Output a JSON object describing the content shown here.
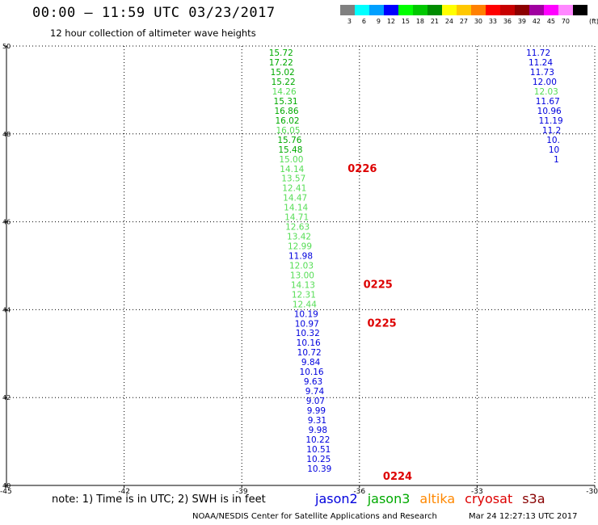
{
  "title": "00:00 – 11:59 UTC 03/23/2017",
  "subtitle": "12 hour collection of altimeter wave heights",
  "legend": {
    "unit": "(ft)",
    "bins": [
      {
        "label": "3",
        "color": "#808080"
      },
      {
        "label": "6",
        "color": "#00ffff"
      },
      {
        "label": "9",
        "color": "#00a0ff"
      },
      {
        "label": "12",
        "color": "#0000ff"
      },
      {
        "label": "15",
        "color": "#00ff00"
      },
      {
        "label": "18",
        "color": "#00c800"
      },
      {
        "label": "21",
        "color": "#008c00"
      },
      {
        "label": "24",
        "color": "#ffff00"
      },
      {
        "label": "27",
        "color": "#ffc800"
      },
      {
        "label": "30",
        "color": "#ff8000"
      },
      {
        "label": "33",
        "color": "#ff0000"
      },
      {
        "label": "36",
        "color": "#c80000"
      },
      {
        "label": "39",
        "color": "#8c0000"
      },
      {
        "label": "42",
        "color": "#a000a0"
      },
      {
        "label": "45",
        "color": "#ff00ff"
      },
      {
        "label": "70",
        "color": "#ff88ff"
      },
      {
        "label": "",
        "color": "#000000"
      }
    ]
  },
  "notes": "note: 1) Time is in UTC; 2) SWH is in feet",
  "satellites": [
    {
      "name": "jason2",
      "color": "#0000dd"
    },
    {
      "name": "jason3",
      "color": "#00aa00"
    },
    {
      "name": "altika",
      "color": "#ff8800"
    },
    {
      "name": "cryosat",
      "color": "#dd0000"
    },
    {
      "name": "s3a",
      "color": "#880000"
    }
  ],
  "credit": "NOAA/NESDIS Center for Satellite Applications and Research",
  "timestamp": "Mar 24 12:27:13 UTC 2017",
  "chart_data": {
    "type": "scatter",
    "xlim": [
      -45,
      -30
    ],
    "ylim": [
      40,
      50
    ],
    "x_ticks": [
      -45,
      -42,
      -39,
      -36,
      -33,
      -30
    ],
    "x_tick_labels": [
      "-45",
      "-42",
      "-39",
      "-36",
      "-33",
      "-30"
    ],
    "y_ticks": [
      40,
      42,
      44,
      46,
      48,
      50
    ],
    "y_tick_labels": [
      "40",
      "42",
      "44",
      "46",
      "48",
      "50"
    ],
    "grid": true,
    "series": [
      {
        "name": "jason3",
        "color": "#00aa00",
        "points": [
          {
            "x": -38.0,
            "y": 49.85,
            "v": "15.72"
          },
          {
            "x": -38.0,
            "y": 49.63,
            "v": "17.22"
          },
          {
            "x": -37.96,
            "y": 49.41,
            "v": "15.02"
          },
          {
            "x": -37.94,
            "y": 49.19,
            "v": "15.22"
          },
          {
            "x": -37.88,
            "y": 48.75,
            "v": "15.31"
          },
          {
            "x": -37.86,
            "y": 48.53,
            "v": "16.86"
          },
          {
            "x": -37.84,
            "y": 48.31,
            "v": "16.02"
          },
          {
            "x": -37.78,
            "y": 47.87,
            "v": "15.76"
          },
          {
            "x": -37.76,
            "y": 47.65,
            "v": "15.48"
          }
        ]
      },
      {
        "name": "jason3",
        "color": "#55dd55",
        "points": [
          {
            "x": -37.92,
            "y": 48.97,
            "v": "14.26"
          },
          {
            "x": -37.82,
            "y": 48.09,
            "v": "16.05"
          },
          {
            "x": -37.74,
            "y": 47.43,
            "v": "15.00"
          },
          {
            "x": -37.72,
            "y": 47.21,
            "v": "14.14"
          },
          {
            "x": -37.68,
            "y": 46.99,
            "v": "13.57"
          },
          {
            "x": -37.66,
            "y": 46.77,
            "v": "12.41"
          },
          {
            "x": -37.64,
            "y": 46.55,
            "v": "14.47"
          },
          {
            "x": -37.62,
            "y": 46.33,
            "v": "14.14"
          },
          {
            "x": -37.6,
            "y": 46.11,
            "v": "14.71"
          },
          {
            "x": -37.58,
            "y": 45.89,
            "v": "12.63"
          },
          {
            "x": -37.54,
            "y": 45.67,
            "v": "13.42"
          },
          {
            "x": -37.52,
            "y": 45.45,
            "v": "12.99"
          },
          {
            "x": -37.48,
            "y": 45.01,
            "v": "12.03"
          },
          {
            "x": -37.46,
            "y": 44.79,
            "v": "13.00"
          },
          {
            "x": -37.44,
            "y": 44.57,
            "v": "14.13"
          },
          {
            "x": -37.42,
            "y": 44.35,
            "v": "12.31"
          },
          {
            "x": -37.4,
            "y": 44.13,
            "v": "12.44"
          }
        ]
      },
      {
        "name": "jason2",
        "color": "#0000dd",
        "points": [
          {
            "x": -37.5,
            "y": 45.23,
            "v": "11.98"
          },
          {
            "x": -37.36,
            "y": 43.91,
            "v": "10.19"
          },
          {
            "x": -37.34,
            "y": 43.69,
            "v": "10.97"
          },
          {
            "x": -37.32,
            "y": 43.47,
            "v": "10.32"
          },
          {
            "x": -37.3,
            "y": 43.25,
            "v": "10.16"
          },
          {
            "x": -37.28,
            "y": 43.03,
            "v": "10.72"
          },
          {
            "x": -37.24,
            "y": 42.81,
            "v": "9.84"
          },
          {
            "x": -37.22,
            "y": 42.59,
            "v": "10.16"
          },
          {
            "x": -37.18,
            "y": 42.37,
            "v": "9.63"
          },
          {
            "x": -37.14,
            "y": 42.15,
            "v": "9.74"
          },
          {
            "x": -37.12,
            "y": 41.93,
            "v": "9.07"
          },
          {
            "x": -37.1,
            "y": 41.71,
            "v": "9.99"
          },
          {
            "x": -37.08,
            "y": 41.49,
            "v": "9.31"
          },
          {
            "x": -37.06,
            "y": 41.27,
            "v": "9.98"
          },
          {
            "x": -37.06,
            "y": 41.05,
            "v": "10.22"
          },
          {
            "x": -37.04,
            "y": 40.83,
            "v": "10.51"
          },
          {
            "x": -37.04,
            "y": 40.61,
            "v": "10.25"
          },
          {
            "x": -37.02,
            "y": 40.39,
            "v": "10.39"
          },
          {
            "x": -31.44,
            "y": 49.85,
            "v": "11.72"
          },
          {
            "x": -31.38,
            "y": 49.63,
            "v": "11.24"
          },
          {
            "x": -31.34,
            "y": 49.41,
            "v": "11.73"
          },
          {
            "x": -31.28,
            "y": 49.19,
            "v": "12.00"
          },
          {
            "x": -31.2,
            "y": 48.75,
            "v": "11.67"
          },
          {
            "x": -31.16,
            "y": 48.53,
            "v": "10.96"
          },
          {
            "x": -31.12,
            "y": 48.31,
            "v": "11.19"
          },
          {
            "x": -31.1,
            "y": 48.09,
            "v": "11.2"
          },
          {
            "x": -31.06,
            "y": 47.87,
            "v": "10."
          },
          {
            "x": -31.04,
            "y": 47.65,
            "v": "10"
          },
          {
            "x": -30.98,
            "y": 47.43,
            "v": "1"
          }
        ]
      },
      {
        "name": "jason3",
        "color": "#55dd55",
        "points": [
          {
            "x": -31.24,
            "y": 48.97,
            "v": "12.03"
          }
        ]
      },
      {
        "name": "cryosat",
        "color": "#dd0000",
        "bold": true,
        "points": [
          {
            "x": -36.3,
            "y": 47.21,
            "v": "0226"
          },
          {
            "x": -35.9,
            "y": 44.57,
            "v": "0225"
          },
          {
            "x": -35.8,
            "y": 43.69,
            "v": "0225"
          },
          {
            "x": -35.4,
            "y": 40.2,
            "v": "0224"
          }
        ]
      }
    ]
  }
}
